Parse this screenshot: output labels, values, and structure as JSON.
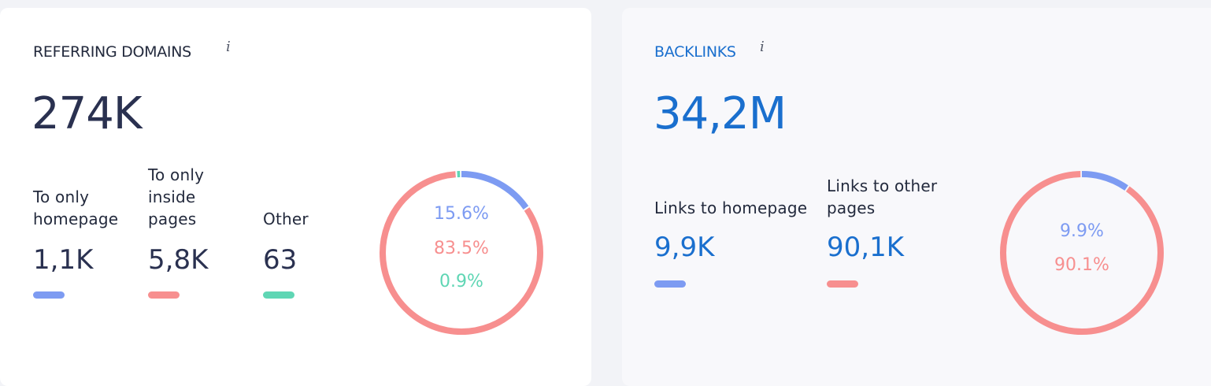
{
  "colors": {
    "blue": "#7d9bf2",
    "red": "#f78f8f",
    "green": "#5fd6b4",
    "dark": "#232a3d",
    "accent": "#1a6fce"
  },
  "referring": {
    "title": "REFERRING DOMAINS",
    "info": "i",
    "total": "274K",
    "stats": [
      {
        "label_lines": [
          "To only",
          "homepage"
        ],
        "value": "1,1K"
      },
      {
        "label_lines": [
          "To only",
          "inside",
          "pages"
        ],
        "value": "5,8K"
      },
      {
        "label_lines": [
          "Other"
        ],
        "value": "63"
      }
    ],
    "donut": {
      "slices": [
        {
          "percent": 15.6,
          "label": "15.6%"
        },
        {
          "percent": 83.5,
          "label": "83.5%"
        },
        {
          "percent": 0.9,
          "label": "0.9%"
        }
      ]
    }
  },
  "backlinks": {
    "title": "BACKLINKS",
    "info": "i",
    "total": "34,2M",
    "stats": [
      {
        "label_lines": [
          "Links to homepage"
        ],
        "value": "9,9K"
      },
      {
        "label_lines": [
          "Links to other",
          "pages"
        ],
        "value": "90,1K"
      }
    ],
    "donut": {
      "slices": [
        {
          "percent": 9.9,
          "label": "9.9%"
        },
        {
          "percent": 90.1,
          "label": "90.1%"
        }
      ]
    }
  }
}
